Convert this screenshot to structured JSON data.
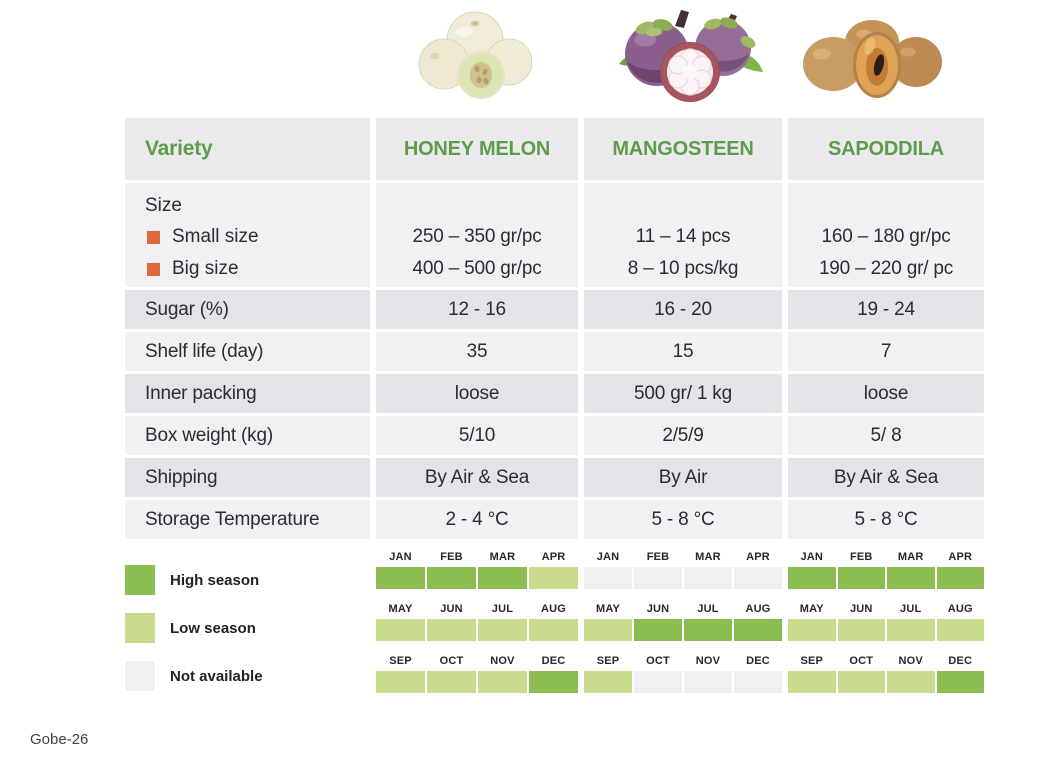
{
  "page": {
    "footer": "Gobe-26"
  },
  "colors": {
    "header_green": "#5E9C4B",
    "orange_bullet": "#E0673C",
    "high_season": "#8CBD52",
    "low_season": "#C9DB8C",
    "not_available": "#F0F0F2"
  },
  "fruits": [
    {
      "id": "honey-melon",
      "name": "HONEY MELON"
    },
    {
      "id": "mangosteen",
      "name": "MANGOSTEEN"
    },
    {
      "id": "sapoddila",
      "name": "SAPODDILA"
    }
  ],
  "table": {
    "header_label": "Variety",
    "size": {
      "label": "Size",
      "items": [
        "Small size",
        "Big size"
      ],
      "values": [
        [
          "250 – 350 gr/pc",
          "400 – 500 gr/pc"
        ],
        [
          "11 – 14 pcs",
          "8 – 10 pcs/kg"
        ],
        [
          "160 – 180 gr/pc",
          "190 – 220 gr/ pc"
        ]
      ]
    },
    "simple_rows": [
      {
        "label": "Sugar (%)",
        "values": [
          "12 - 16",
          "16 - 20",
          "19 - 24"
        ]
      },
      {
        "label": "Shelf life (day)",
        "values": [
          "35",
          "15",
          "7"
        ]
      },
      {
        "label": "Inner packing",
        "values": [
          "loose",
          "500 gr/ 1 kg",
          "loose"
        ]
      },
      {
        "label": "Box weight (kg)",
        "values": [
          "5/10",
          "2/5/9",
          "5/ 8"
        ]
      },
      {
        "label": "Shipping",
        "values": [
          "By Air & Sea",
          "By Air",
          "By Air & Sea"
        ]
      },
      {
        "label": "Storage Temperature",
        "values": [
          "2 - 4 °C",
          "5 - 8 °C",
          "5 - 8 °C"
        ]
      }
    ]
  },
  "legend": [
    {
      "key": "high",
      "label": "High season"
    },
    {
      "key": "low",
      "label": "Low season"
    },
    {
      "key": "na",
      "label": "Not available"
    }
  ],
  "calendar": {
    "months": [
      "JAN",
      "FEB",
      "MAR",
      "APR",
      "MAY",
      "JUN",
      "JUL",
      "AUG",
      "SEP",
      "OCT",
      "NOV",
      "DEC"
    ],
    "seasons": {
      "honey_melon": [
        "high",
        "high",
        "high",
        "low",
        "low",
        "low",
        "low",
        "low",
        "low",
        "low",
        "low",
        "high"
      ],
      "mangosteen": [
        "na",
        "na",
        "na",
        "na",
        "low",
        "high",
        "high",
        "high",
        "low",
        "na",
        "na",
        "na"
      ],
      "sapoddila": [
        "high",
        "high",
        "high",
        "high",
        "low",
        "low",
        "low",
        "low",
        "low",
        "low",
        "low",
        "high"
      ]
    }
  }
}
